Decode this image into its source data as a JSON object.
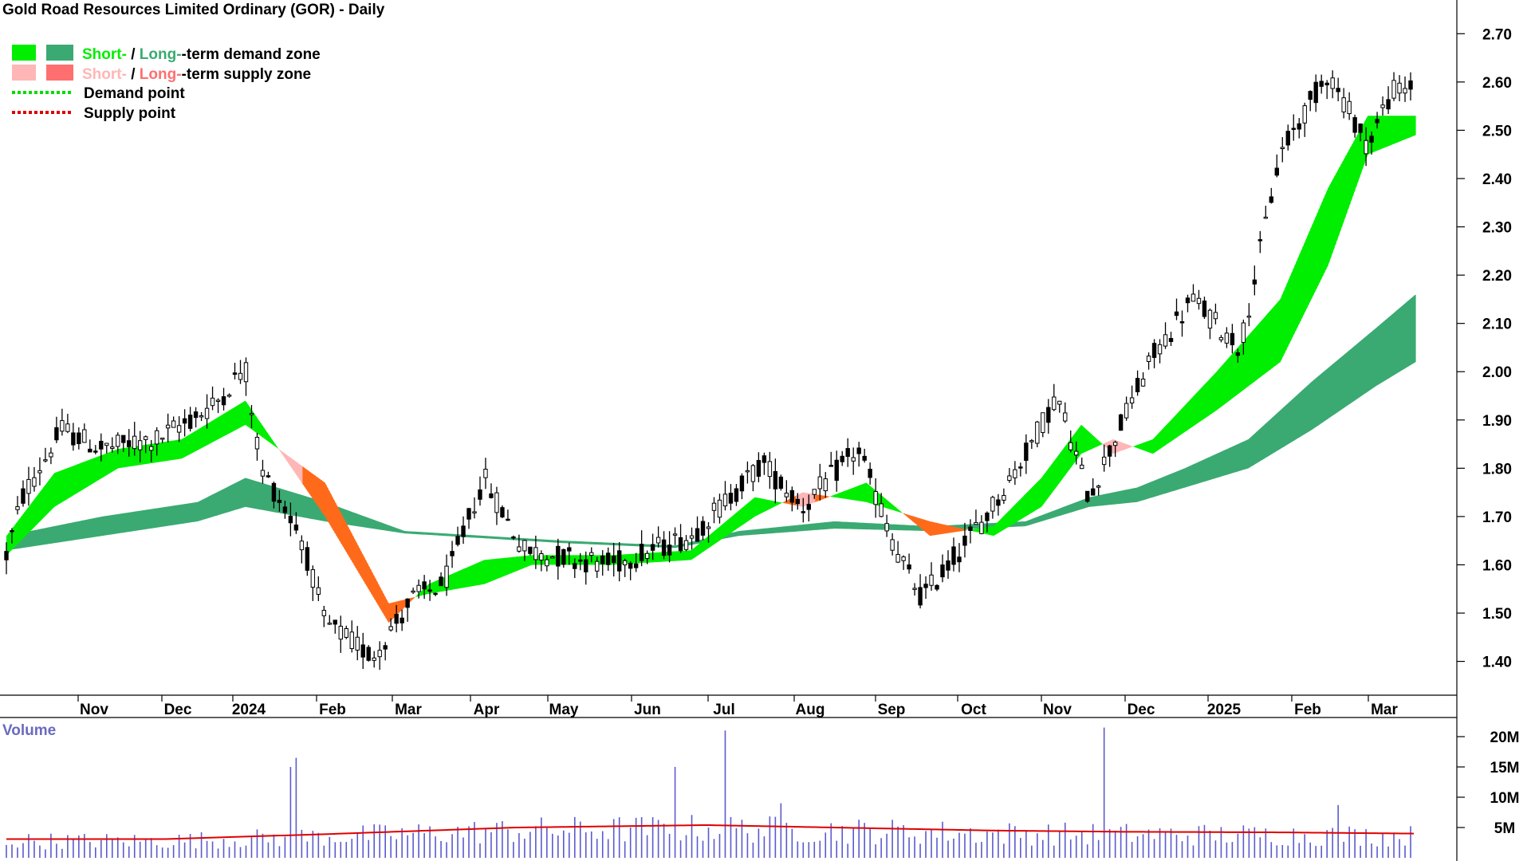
{
  "chart_data": [
    {
      "type": "candlestick",
      "title": "Gold Road Resources Limited Ordinary (GOR) - Daily",
      "ylim": [
        1.33,
        2.75
      ],
      "y_ticks": [
        1.4,
        1.5,
        1.6,
        1.7,
        1.8,
        1.9,
        2.0,
        2.1,
        2.2,
        2.3,
        2.4,
        2.5,
        2.6,
        2.7
      ],
      "y_tick_labels": [
        "1.40",
        "1.50",
        "1.60",
        "1.70",
        "1.80",
        "1.90",
        "2.00",
        "2.10",
        "2.20",
        "2.30",
        "2.40",
        "2.50",
        "2.60",
        "2.70"
      ],
      "x_tick_labels": [
        "Nov",
        "Dec",
        "2024",
        "Feb",
        "Mar",
        "Apr",
        "May",
        "Jun",
        "Jul",
        "Aug",
        "Sep",
        "Oct",
        "Nov",
        "Dec",
        "2025",
        "Feb",
        "Mar"
      ],
      "grid": false,
      "legend_position": "top-left",
      "legend": [
        {
          "part1": "Short-",
          "sep": " / ",
          "part2": "Long-",
          "rest": "-term demand zone",
          "color1": "#00ee00",
          "color2": "#3aaa72"
        },
        {
          "part1": "Short-",
          "sep": " / ",
          "part2": "Long-",
          "rest": "-term supply zone",
          "color1": "#ffb6b6",
          "color2": "#ff6f6f"
        },
        {
          "label": "Demand point",
          "color": "#00dd00"
        },
        {
          "label": "Supply point",
          "color": "#dd0000"
        }
      ],
      "price_anchors": [
        {
          "t": 0,
          "v": 1.62
        },
        {
          "t": 10,
          "v": 1.74
        },
        {
          "t": 35,
          "v": 1.88
        },
        {
          "t": 60,
          "v": 1.84
        },
        {
          "t": 95,
          "v": 1.86
        },
        {
          "t": 130,
          "v": 1.93
        },
        {
          "t": 150,
          "v": 2.01
        },
        {
          "t": 160,
          "v": 1.8
        },
        {
          "t": 185,
          "v": 1.66
        },
        {
          "t": 200,
          "v": 1.48
        },
        {
          "t": 230,
          "v": 1.41
        },
        {
          "t": 255,
          "v": 1.53
        },
        {
          "t": 275,
          "v": 1.56
        },
        {
          "t": 300,
          "v": 1.78
        },
        {
          "t": 325,
          "v": 1.63
        },
        {
          "t": 380,
          "v": 1.6
        },
        {
          "t": 430,
          "v": 1.66
        },
        {
          "t": 475,
          "v": 1.81
        },
        {
          "t": 500,
          "v": 1.72
        },
        {
          "t": 535,
          "v": 1.84
        },
        {
          "t": 560,
          "v": 1.62
        },
        {
          "t": 575,
          "v": 1.53
        },
        {
          "t": 615,
          "v": 1.7
        },
        {
          "t": 635,
          "v": 1.8
        },
        {
          "t": 660,
          "v": 1.95
        },
        {
          "t": 680,
          "v": 1.74
        },
        {
          "t": 700,
          "v": 1.89
        },
        {
          "t": 720,
          "v": 2.03
        },
        {
          "t": 745,
          "v": 2.15
        },
        {
          "t": 775,
          "v": 2.05
        },
        {
          "t": 800,
          "v": 2.45
        },
        {
          "t": 830,
          "v": 2.62
        },
        {
          "t": 855,
          "v": 2.47
        },
        {
          "t": 870,
          "v": 2.58
        },
        {
          "t": 885,
          "v": 2.59
        }
      ],
      "short_zone_upper": [
        {
          "t": 0,
          "v": 1.66
        },
        {
          "t": 30,
          "v": 1.79
        },
        {
          "t": 70,
          "v": 1.84
        },
        {
          "t": 110,
          "v": 1.86
        },
        {
          "t": 150,
          "v": 1.94
        },
        {
          "t": 200,
          "v": 1.7
        },
        {
          "t": 240,
          "v": 1.48
        },
        {
          "t": 265,
          "v": 1.56
        },
        {
          "t": 300,
          "v": 1.61
        },
        {
          "t": 330,
          "v": 1.62
        },
        {
          "t": 380,
          "v": 1.62
        },
        {
          "t": 430,
          "v": 1.63
        },
        {
          "t": 470,
          "v": 1.74
        },
        {
          "t": 500,
          "v": 1.72
        },
        {
          "t": 540,
          "v": 1.77
        },
        {
          "t": 580,
          "v": 1.66
        },
        {
          "t": 620,
          "v": 1.68
        },
        {
          "t": 650,
          "v": 1.78
        },
        {
          "t": 675,
          "v": 1.89
        },
        {
          "t": 695,
          "v": 1.83
        },
        {
          "t": 720,
          "v": 1.86
        },
        {
          "t": 760,
          "v": 2.0
        },
        {
          "t": 800,
          "v": 2.15
        },
        {
          "t": 830,
          "v": 2.38
        },
        {
          "t": 855,
          "v": 2.53
        },
        {
          "t": 885,
          "v": 2.53
        }
      ],
      "short_zone_lower": [
        {
          "t": 0,
          "v": 1.62
        },
        {
          "t": 30,
          "v": 1.72
        },
        {
          "t": 70,
          "v": 1.8
        },
        {
          "t": 110,
          "v": 1.82
        },
        {
          "t": 150,
          "v": 1.89
        },
        {
          "t": 200,
          "v": 1.77
        },
        {
          "t": 240,
          "v": 1.52
        },
        {
          "t": 265,
          "v": 1.54
        },
        {
          "t": 300,
          "v": 1.56
        },
        {
          "t": 330,
          "v": 1.6
        },
        {
          "t": 380,
          "v": 1.6
        },
        {
          "t": 430,
          "v": 1.61
        },
        {
          "t": 470,
          "v": 1.7
        },
        {
          "t": 500,
          "v": 1.75
        },
        {
          "t": 540,
          "v": 1.73
        },
        {
          "t": 580,
          "v": 1.69
        },
        {
          "t": 620,
          "v": 1.66
        },
        {
          "t": 650,
          "v": 1.72
        },
        {
          "t": 675,
          "v": 1.83
        },
        {
          "t": 695,
          "v": 1.86
        },
        {
          "t": 720,
          "v": 1.83
        },
        {
          "t": 760,
          "v": 1.92
        },
        {
          "t": 800,
          "v": 2.02
        },
        {
          "t": 830,
          "v": 2.22
        },
        {
          "t": 855,
          "v": 2.45
        },
        {
          "t": 885,
          "v": 2.49
        }
      ],
      "long_zone_upper": [
        {
          "t": 0,
          "v": 1.66
        },
        {
          "t": 60,
          "v": 1.7
        },
        {
          "t": 120,
          "v": 1.73
        },
        {
          "t": 150,
          "v": 1.78
        },
        {
          "t": 200,
          "v": 1.73
        },
        {
          "t": 250,
          "v": 1.67
        },
        {
          "t": 300,
          "v": 1.66
        },
        {
          "t": 350,
          "v": 1.65
        },
        {
          "t": 420,
          "v": 1.64
        },
        {
          "t": 460,
          "v": 1.67
        },
        {
          "t": 520,
          "v": 1.69
        },
        {
          "t": 580,
          "v": 1.68
        },
        {
          "t": 640,
          "v": 1.69
        },
        {
          "t": 680,
          "v": 1.74
        },
        {
          "t": 710,
          "v": 1.76
        },
        {
          "t": 740,
          "v": 1.8
        },
        {
          "t": 780,
          "v": 1.86
        },
        {
          "t": 820,
          "v": 1.98
        },
        {
          "t": 860,
          "v": 2.09
        },
        {
          "t": 885,
          "v": 2.16
        }
      ],
      "long_zone_lower": [
        {
          "t": 0,
          "v": 1.63
        },
        {
          "t": 60,
          "v": 1.66
        },
        {
          "t": 120,
          "v": 1.69
        },
        {
          "t": 150,
          "v": 1.72
        },
        {
          "t": 200,
          "v": 1.69
        },
        {
          "t": 250,
          "v": 1.665
        },
        {
          "t": 300,
          "v": 1.655
        },
        {
          "t": 350,
          "v": 1.645
        },
        {
          "t": 420,
          "v": 1.635
        },
        {
          "t": 460,
          "v": 1.66
        },
        {
          "t": 520,
          "v": 1.675
        },
        {
          "t": 580,
          "v": 1.67
        },
        {
          "t": 640,
          "v": 1.68
        },
        {
          "t": 680,
          "v": 1.72
        },
        {
          "t": 710,
          "v": 1.73
        },
        {
          "t": 740,
          "v": 1.76
        },
        {
          "t": 780,
          "v": 1.8
        },
        {
          "t": 820,
          "v": 1.88
        },
        {
          "t": 860,
          "v": 1.97
        },
        {
          "t": 885,
          "v": 2.02
        }
      ]
    },
    {
      "type": "bar",
      "title": "Volume",
      "y_tick_values": [
        5000000,
        10000000,
        15000000,
        20000000
      ],
      "y_tick_labels": [
        "5M",
        "10M",
        "15M",
        "20M"
      ],
      "ylim": [
        0,
        22500000
      ],
      "volume_spikes": [
        {
          "t": 182,
          "v": 16500000
        },
        {
          "t": 180,
          "v": 15000000
        },
        {
          "t": 420,
          "v": 15000000
        },
        {
          "t": 450,
          "v": 21000000
        },
        {
          "t": 485,
          "v": 9000000
        },
        {
          "t": 690,
          "v": 21500000
        },
        {
          "t": 835,
          "v": 8700000
        }
      ],
      "average_line": [
        {
          "t": 0,
          "v": 3100000
        },
        {
          "t": 100,
          "v": 3100000
        },
        {
          "t": 200,
          "v": 3900000
        },
        {
          "t": 320,
          "v": 5000000
        },
        {
          "t": 440,
          "v": 5400000
        },
        {
          "t": 520,
          "v": 5000000
        },
        {
          "t": 620,
          "v": 4500000
        },
        {
          "t": 700,
          "v": 4300000
        },
        {
          "t": 800,
          "v": 4200000
        },
        {
          "t": 885,
          "v": 4000000
        }
      ]
    }
  ]
}
